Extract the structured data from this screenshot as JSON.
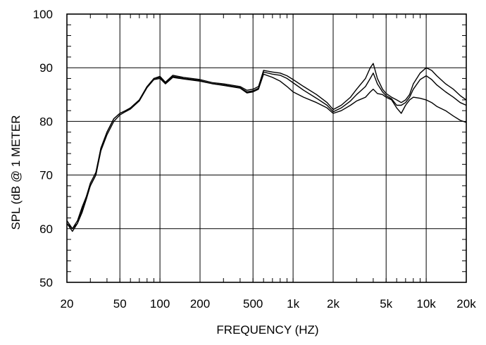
{
  "chart_data": {
    "type": "line",
    "title": "",
    "xlabel": "FREQUENCY  (HZ)",
    "ylabel": "SPL (dB @ 1 METER",
    "x_scale": "log",
    "xlim": [
      20,
      20000
    ],
    "ylim": [
      50,
      100
    ],
    "grid": true,
    "x_ticks": [
      {
        "value": 20,
        "label": "20"
      },
      {
        "value": 50,
        "label": "50"
      },
      {
        "value": 100,
        "label": "100"
      },
      {
        "value": 200,
        "label": "200"
      },
      {
        "value": 500,
        "label": "500"
      },
      {
        "value": 1000,
        "label": "1k"
      },
      {
        "value": 2000,
        "label": "2k"
      },
      {
        "value": 5000,
        "label": "5k"
      },
      {
        "value": 10000,
        "label": "10k"
      },
      {
        "value": 20000,
        "label": "20k"
      }
    ],
    "y_ticks": [
      {
        "value": 50,
        "label": "50"
      },
      {
        "value": 60,
        "label": "60"
      },
      {
        "value": 70,
        "label": "70"
      },
      {
        "value": 80,
        "label": "80"
      },
      {
        "value": 90,
        "label": "90"
      },
      {
        "value": 100,
        "label": "100"
      }
    ],
    "x": [
      20,
      22,
      24,
      26,
      28,
      30,
      33,
      36,
      40,
      45,
      50,
      55,
      60,
      70,
      80,
      90,
      100,
      110,
      125,
      150,
      200,
      250,
      300,
      400,
      450,
      500,
      550,
      600,
      700,
      800,
      900,
      1000,
      1200,
      1500,
      1800,
      2000,
      2300,
      2700,
      3000,
      3500,
      3800,
      4000,
      4300,
      4700,
      5000,
      5500,
      6000,
      6500,
      7000,
      7500,
      8000,
      9000,
      10000,
      11000,
      12000,
      14000,
      16000,
      18000,
      20000
    ],
    "series": [
      {
        "values": [
          61,
          60,
          61.5,
          64,
          66,
          68,
          70,
          75,
          78,
          80.5,
          81.5,
          82,
          82.5,
          84,
          86.5,
          88,
          88.4,
          87.3,
          88.6,
          88.2,
          87.8,
          87.2,
          87,
          86.5,
          85.8,
          86,
          86.5,
          89.5,
          89.2,
          89,
          88.5,
          87.8,
          86.5,
          85,
          83.5,
          82.2,
          83,
          84.5,
          86,
          88,
          90,
          90.8,
          88,
          86,
          85.2,
          84.5,
          84,
          83.5,
          84,
          85,
          87,
          89,
          90,
          89.5,
          88.5,
          87,
          86,
          84.8,
          84
        ]
      },
      {
        "values": [
          61.5,
          60,
          61,
          63.5,
          66,
          68.5,
          70.5,
          75,
          78,
          80.5,
          81.5,
          82,
          82.5,
          84,
          86.5,
          88,
          88.2,
          87.1,
          88.4,
          88,
          87.6,
          87,
          86.8,
          86.3,
          85.5,
          85.7,
          86.2,
          89.2,
          88.8,
          88.6,
          88,
          87.2,
          85.8,
          84.3,
          83,
          81.8,
          82.5,
          83.8,
          85,
          86.5,
          88,
          89,
          87,
          85.5,
          84.8,
          84.2,
          83,
          83,
          83.5,
          84.5,
          86,
          87.8,
          88.5,
          87.8,
          86.8,
          85.5,
          84.5,
          83.5,
          83
        ]
      },
      {
        "values": [
          61,
          59.5,
          61,
          63,
          65.5,
          68,
          70,
          74.5,
          77.5,
          80,
          81.2,
          81.8,
          82.3,
          83.8,
          86.3,
          87.8,
          88,
          87,
          88.2,
          87.9,
          87.5,
          87,
          86.7,
          86.2,
          85.3,
          85.5,
          86,
          88.8,
          88.2,
          87.5,
          86.5,
          85.5,
          84.5,
          83.5,
          82.5,
          81.5,
          82,
          83,
          83.8,
          84.5,
          85.5,
          86,
          85.2,
          85,
          84.5,
          84,
          82.5,
          81.5,
          83,
          84,
          84.5,
          84.3,
          84,
          83.5,
          82.8,
          82,
          81,
          80.2,
          79.8
        ]
      }
    ]
  }
}
